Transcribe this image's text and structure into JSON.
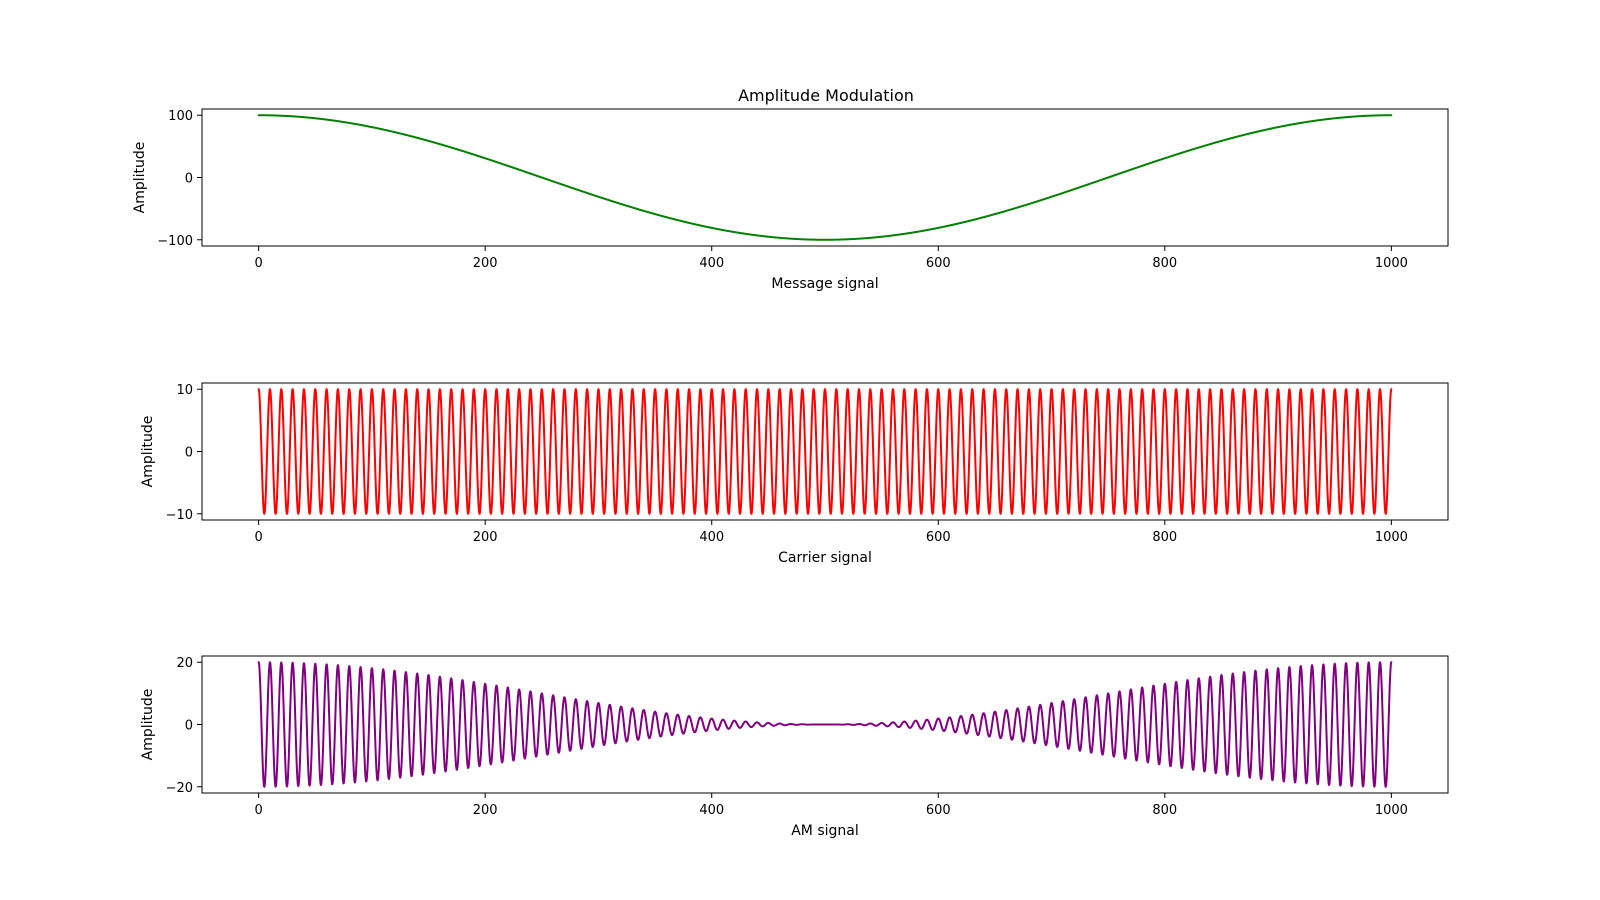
{
  "figure_title": "Amplitude Modulation",
  "chart_data": [
    {
      "type": "line",
      "title": "Amplitude Modulation",
      "xlabel": "Message signal",
      "ylabel": "Amplitude",
      "xlim": [
        -50,
        1050
      ],
      "ylim": [
        -110,
        110
      ],
      "xticks": [
        0,
        200,
        400,
        600,
        800,
        1000
      ],
      "xtick_labels": [
        "0",
        "200",
        "400",
        "600",
        "800",
        "1000"
      ],
      "yticks": [
        -100,
        0,
        100
      ],
      "ytick_labels": [
        "−100",
        "0",
        "100"
      ],
      "grid": false,
      "series": [
        {
          "color": "#008000",
          "function": "100*cos(2*pi*x/1000)",
          "x_range": [
            0,
            1000
          ],
          "keypoints": [
            [
              0,
              100
            ],
            [
              250,
              0
            ],
            [
              500,
              -100
            ],
            [
              750,
              0
            ],
            [
              1000,
              100
            ]
          ]
        }
      ]
    },
    {
      "type": "line",
      "title": "",
      "xlabel": "Carrier signal",
      "ylabel": "Amplitude",
      "xlim": [
        -50,
        1050
      ],
      "ylim": [
        -11,
        11
      ],
      "xticks": [
        0,
        200,
        400,
        600,
        800,
        1000
      ],
      "xtick_labels": [
        "0",
        "200",
        "400",
        "600",
        "800",
        "1000"
      ],
      "yticks": [
        -10,
        0,
        10
      ],
      "ytick_labels": [
        "−10",
        "0",
        "10"
      ],
      "grid": false,
      "series": [
        {
          "color": "#ff0000",
          "function": "10*cos(2*pi*100*x/1000)",
          "x_range": [
            0,
            1000
          ],
          "amplitude": 10,
          "cycles": 100
        }
      ]
    },
    {
      "type": "line",
      "title": "",
      "xlabel": "AM signal",
      "ylabel": "Amplitude",
      "xlim": [
        -50,
        1050
      ],
      "ylim": [
        -22,
        22
      ],
      "xticks": [
        0,
        200,
        400,
        600,
        800,
        1000
      ],
      "xtick_labels": [
        "0",
        "200",
        "400",
        "600",
        "800",
        "1000"
      ],
      "yticks": [
        -20,
        0,
        20
      ],
      "ytick_labels": [
        "−20",
        "0",
        "20"
      ],
      "grid": false,
      "series": [
        {
          "color": "#800080",
          "function": "10*(1+cos(2*pi*x/1000))*cos(2*pi*100*x/1000)",
          "x_range": [
            0,
            1000
          ],
          "envelope_max": 20,
          "cycles": 100
        }
      ]
    }
  ]
}
